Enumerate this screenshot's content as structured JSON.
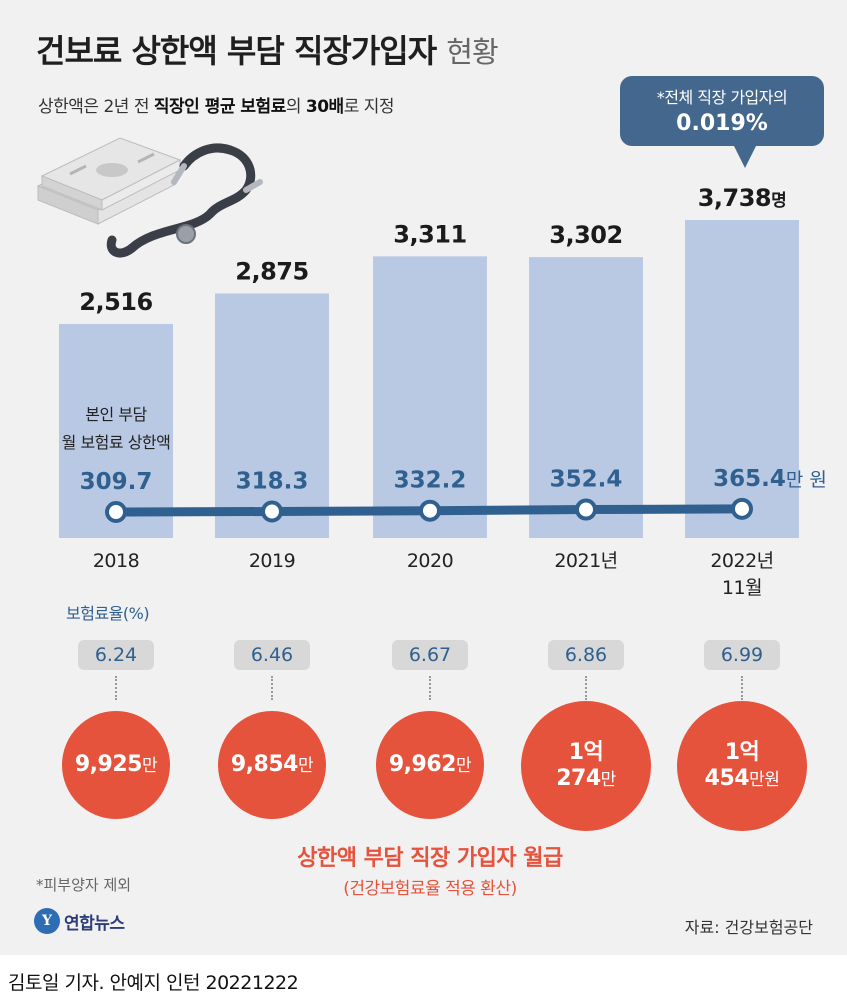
{
  "header": {
    "title_main": "건보료 상한액 부담 직장가입자",
    "title_suffix": "현황",
    "subtitle_pre": "상한액은 2년 전 ",
    "subtitle_bold1": "직장인 평균 보험료",
    "subtitle_mid": "의 ",
    "subtitle_bold2": "30배",
    "subtitle_post": "로 지정"
  },
  "callout": {
    "line1": "*전체 직장 가입자의",
    "line2": "0.019%"
  },
  "colors": {
    "bar": "#b9c9e3",
    "line": "#30608f",
    "callout": "#44678e",
    "salary_circle": "#e5533d",
    "background": "#f1f1f1"
  },
  "chart_data": {
    "type": "bar",
    "categories": [
      "2018",
      "2019",
      "2020",
      "2021년",
      "2022년"
    ],
    "category_sublabels": [
      "",
      "",
      "",
      "",
      "11월"
    ],
    "series": [
      {
        "values": [
          2516,
          2875,
          3311,
          3302,
          3738
        ],
        "value_labels": [
          "2,516",
          "2,875",
          "3,311",
          "3,302",
          "3,738"
        ],
        "last_unit": "명"
      },
      {
        "name": "본인 부담 월 보험료 상한액",
        "type": "line",
        "values": [
          309.7,
          318.3,
          332.2,
          352.4,
          365.4
        ],
        "value_labels": [
          "309.7",
          "318.3",
          "332.2",
          "352.4",
          "365.4"
        ],
        "last_unit": "만 원"
      }
    ],
    "line_caption_1": "본인 부담",
    "line_caption_2": "월 보험료 상한액",
    "title": "건보료 상한액 부담 직장가입자 현황",
    "ylim": [
      0,
      4200
    ],
    "grid": false,
    "legend": "none"
  },
  "rates": {
    "heading": "보험료율(%)",
    "values": [
      "6.24",
      "6.46",
      "6.67",
      "6.86",
      "6.99"
    ]
  },
  "salaries": {
    "heading": "상한액 부담 직장 가입자 월급",
    "subheading": "(건강보험료율 적용 환산)",
    "items": [
      {
        "line1": "",
        "main": "9,925",
        "unit": "만"
      },
      {
        "line1": "",
        "main": "9,854",
        "unit": "만"
      },
      {
        "line1": "",
        "main": "9,962",
        "unit": "만"
      },
      {
        "line1": "1억",
        "main": "274",
        "unit": "만"
      },
      {
        "line1": "1억",
        "main": "454",
        "unit": "만원"
      }
    ]
  },
  "footer": {
    "footnote": "*피부양자 제외",
    "logo_text": "연합뉴스",
    "source": "자료: 건강보험공단",
    "credit": "김토일 기자. 안예지 인턴  20221222"
  },
  "icons": [
    "money-stack-icon",
    "stethoscope-icon",
    "yonhap-logo-icon"
  ]
}
